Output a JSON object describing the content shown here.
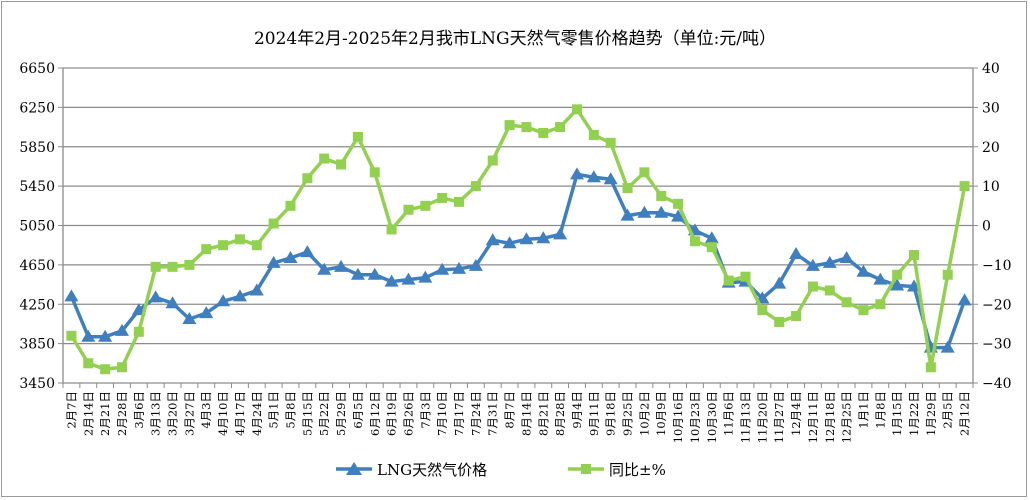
{
  "chart_data": {
    "type": "line",
    "title": "2024年2月-2025年2月我市LNG天然气零售价格趋势（单位:元/吨）",
    "categories": [
      "2月7日",
      "2月14日",
      "2月21日",
      "2月28日",
      "3月6日",
      "3月13日",
      "3月20日",
      "3月27日",
      "4月3日",
      "4月10日",
      "4月17日",
      "4月24日",
      "5月1日",
      "5月8日",
      "5月15日",
      "5月22日",
      "5月29日",
      "6月5日",
      "6月12日",
      "6月19日",
      "6月26日",
      "7月3日",
      "7月10日",
      "7月17日",
      "7月24日",
      "7月31日",
      "8月7日",
      "8月14日",
      "8月21日",
      "8月28日",
      "9月4日",
      "9月11日",
      "9月18日",
      "9月25日",
      "10月2日",
      "10月9日",
      "10月16日",
      "10月23日",
      "10月30日",
      "11月6日",
      "11月13日",
      "11月20日",
      "11月27日",
      "12月4日",
      "12月11日",
      "12月18日",
      "12月25日",
      "1月1日",
      "1月8日",
      "1月15日",
      "1月22日",
      "1月29日",
      "2月5日",
      "2月12日"
    ],
    "left_axis": {
      "ylim": [
        3450,
        6650
      ],
      "ticks": [
        3450,
        3850,
        4250,
        4650,
        5050,
        5450,
        5850,
        6250,
        6650
      ]
    },
    "right_axis": {
      "ylim": [
        -40,
        40
      ],
      "ticks": [
        -40,
        -30,
        -20,
        -10,
        0,
        10,
        20,
        30,
        40
      ]
    },
    "grid": true,
    "legend_position": "bottom",
    "series": [
      {
        "name": "LNG天然气价格",
        "axis": "left",
        "marker": "triangle",
        "color": "#3f7fbf",
        "values": [
          4330,
          3920,
          3920,
          3980,
          4190,
          4320,
          4260,
          4100,
          4160,
          4280,
          4330,
          4390,
          4670,
          4720,
          4780,
          4600,
          4630,
          4550,
          4550,
          4480,
          4500,
          4520,
          4600,
          4610,
          4640,
          4900,
          4870,
          4910,
          4920,
          4960,
          5570,
          5540,
          5520,
          5150,
          5180,
          5180,
          5140,
          5000,
          4920,
          4470,
          4480,
          4310,
          4460,
          4760,
          4640,
          4670,
          4720,
          4580,
          4500,
          4440,
          4430,
          3810,
          3810,
          4290
        ]
      },
      {
        "name": "同比±%",
        "axis": "right",
        "marker": "square",
        "color": "#92d050",
        "values": [
          -28,
          -35,
          -36.5,
          -36,
          -27,
          -10.5,
          -10.5,
          -10,
          -6,
          -5,
          -3.5,
          -5,
          0.5,
          5,
          12,
          17,
          15.5,
          22.5,
          13.5,
          -1,
          4,
          5,
          7,
          6,
          10,
          16.5,
          25.5,
          25,
          23.5,
          25,
          29.5,
          23,
          21,
          9.5,
          13.5,
          7.5,
          5.5,
          -4,
          -5.5,
          -14,
          -13,
          -21.5,
          -24.5,
          -23,
          -15.5,
          -16.5,
          -19.5,
          -21.5,
          -20,
          -12.5,
          -7.5,
          -36,
          -12.5,
          10
        ]
      }
    ]
  }
}
